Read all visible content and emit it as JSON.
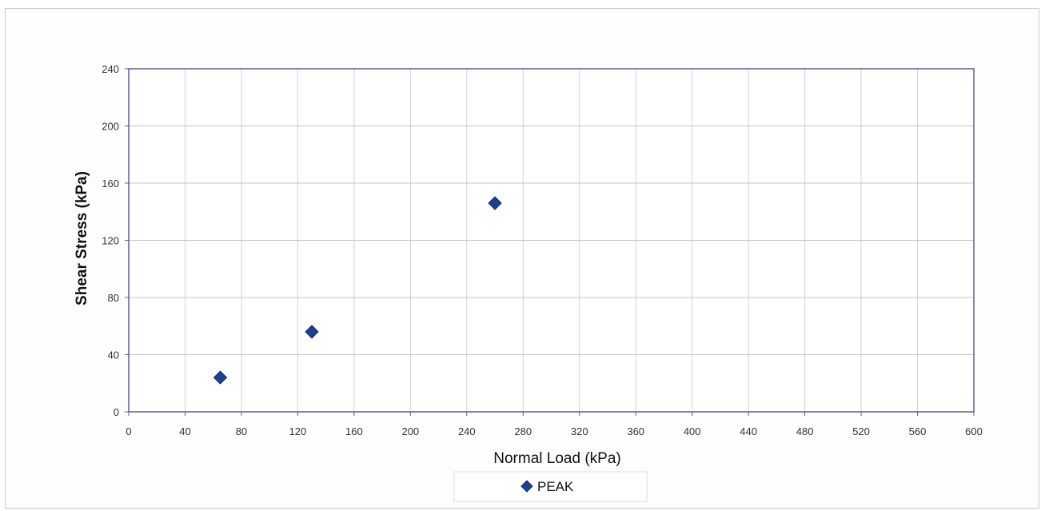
{
  "chart_data": {
    "type": "scatter",
    "xlabel": "Normal Load (kPa)",
    "ylabel": "Shear Stress (kPa)",
    "xlim": [
      0,
      600
    ],
    "ylim": [
      0,
      240
    ],
    "x_ticks": [
      0,
      40,
      80,
      120,
      160,
      200,
      240,
      280,
      320,
      360,
      400,
      440,
      480,
      520,
      560,
      600
    ],
    "y_ticks": [
      0,
      40,
      80,
      120,
      160,
      200,
      240
    ],
    "grid": true,
    "legend_position": "bottom",
    "series": [
      {
        "name": "PEAK",
        "marker": "diamond",
        "color": "#1f3f8f",
        "points": [
          {
            "x": 65,
            "y": 24
          },
          {
            "x": 130,
            "y": 56
          },
          {
            "x": 260,
            "y": 146
          }
        ]
      }
    ]
  }
}
